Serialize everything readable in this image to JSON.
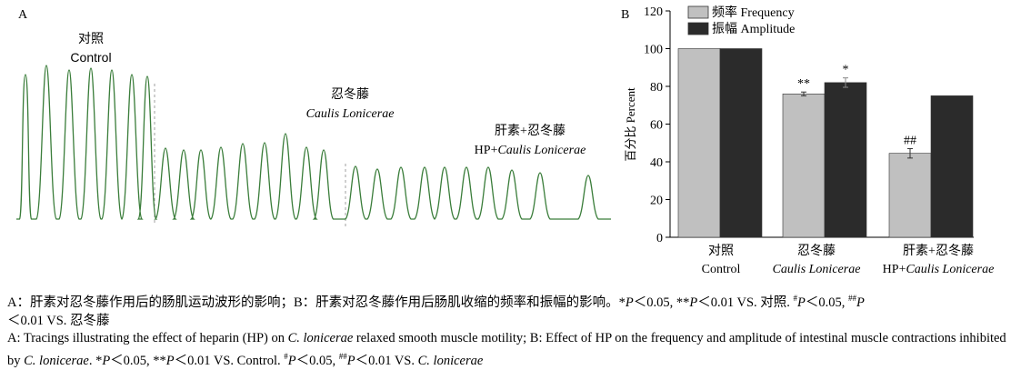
{
  "panel_a": {
    "label": "A",
    "segments": [
      {
        "name_cn": "对照",
        "name_en": "Control",
        "peaks": 7
      },
      {
        "name_cn": "忍冬藤",
        "name_en": "Caulis Lonicerae",
        "peaks": 9
      },
      {
        "name_cn": "肝素+忍冬藤",
        "name_en_prefix": "HP+",
        "name_en": "Caulis Lonicerae",
        "peaks": 10
      }
    ],
    "trace_color": "#3a7d3a"
  },
  "chart_data": {
    "type": "bar",
    "panel_label": "B",
    "categories": [
      {
        "cn": "对照",
        "en": "Control"
      },
      {
        "cn": "忍冬藤",
        "en": "Caulis Lonicerae"
      },
      {
        "cn": "肝素+忍冬藤",
        "en_prefix": "HP+",
        "en": "Caulis Lonicerae"
      }
    ],
    "series": [
      {
        "name": "频率 Frequency",
        "color": "#c0c0c0",
        "values": [
          100,
          76,
          44.5
        ],
        "errors": [
          0,
          1,
          2.5
        ],
        "labels": [
          "",
          "**",
          "##"
        ]
      },
      {
        "name": "振幅 Amplitude",
        "color": "#2b2b2b",
        "values": [
          100,
          82,
          75
        ],
        "errors": [
          0,
          2.5,
          0
        ],
        "labels": [
          "",
          "*",
          ""
        ]
      }
    ],
    "ylabel": "百分比 Percent",
    "ylim": [
      0,
      120
    ],
    "yticks": [
      0,
      20,
      40,
      60,
      80,
      100,
      120
    ],
    "legend_position": "top"
  },
  "caption": {
    "cn_a": "A：肝素对忍冬藤作用后的肠肌运动波形的影响；B：肝素对忍冬藤作用后肠肌收缩的频率和振幅的影响。*",
    "cn_p": "P",
    "cn_b": "＜0.05, **",
    "cn_c": "＜0.01 VS. 对照. ",
    "cn_hash1": "#",
    "cn_d": "＜0.05, ",
    "cn_hash2": "##",
    "cn_e": "＜0.01 VS. 忍冬藤",
    "en_a": "A: Tracings illustrating the effect of heparin (HP) on ",
    "en_species": "C. lonicerae",
    "en_b": " relaxed smooth muscle motility; B: Effect of HP on the frequency and amplitude of intestinal muscle contractions inhibited by ",
    "en_c": ". *",
    "en_d": "＜0.05, **",
    "en_e": "＜0.01 VS. Control. ",
    "en_f": "＜0.05, ",
    "en_g": "＜0.01 VS. "
  }
}
